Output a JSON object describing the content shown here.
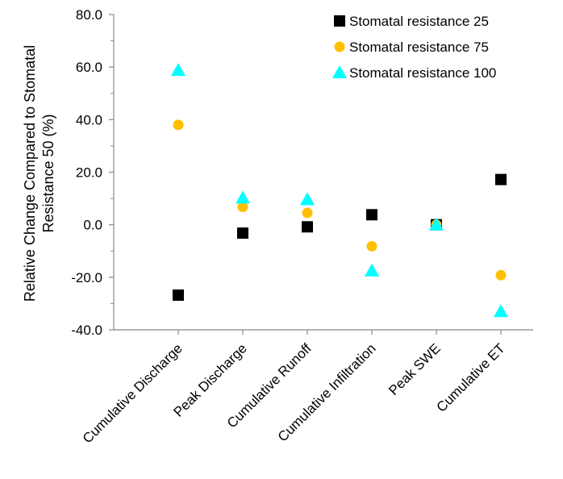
{
  "chart_data": {
    "type": "scatter",
    "title": "",
    "xlabel": "",
    "ylabel_lines": [
      "Relative Change Compared to Stomatal",
      "Resistance 50 (%)"
    ],
    "categories": [
      "Cumulative Discharge",
      "Peak Discharge",
      "Cumulative Runoff",
      "Cumulative Infiltration",
      "Peak SWE",
      "Cumulative ET"
    ],
    "ylim": [
      -40,
      80
    ],
    "y_ticks": [
      "80.0",
      "60.0",
      "40.0",
      "20.0",
      "0.0",
      "-20.0",
      "-40.0"
    ],
    "grid": false,
    "legend_position": "top-right",
    "series": [
      {
        "name": "Stomatal resistance 25",
        "marker": "square",
        "color": "#000000",
        "values": [
          -26.8,
          -3.2,
          -0.8,
          3.8,
          0.0,
          17.2
        ]
      },
      {
        "name": "Stomatal resistance 75",
        "marker": "circle",
        "color": "#FFC000",
        "values": [
          38.0,
          6.8,
          4.5,
          -8.2,
          0.0,
          -19.2
        ]
      },
      {
        "name": "Stomatal resistance 100",
        "marker": "triangle",
        "color": "#00FFFF",
        "values": [
          58.8,
          10.2,
          9.6,
          -17.5,
          0.0,
          -33.0
        ]
      }
    ]
  }
}
